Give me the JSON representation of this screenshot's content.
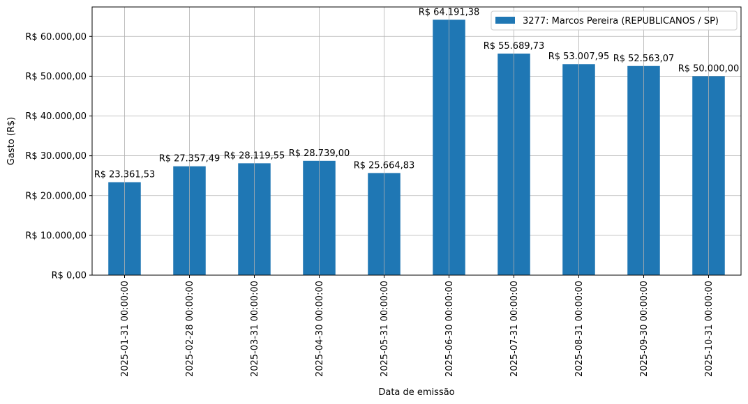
{
  "chart_data": {
    "type": "bar",
    "xlabel": "Data de emissão",
    "ylabel": "Gasto (R$)",
    "categories": [
      "2025-01-31 00:00:00",
      "2025-02-28 00:00:00",
      "2025-03-31 00:00:00",
      "2025-04-30 00:00:00",
      "2025-05-31 00:00:00",
      "2025-06-30 00:00:00",
      "2025-07-31 00:00:00",
      "2025-08-31 00:00:00",
      "2025-09-30 00:00:00",
      "2025-10-31 00:00:00"
    ],
    "series": [
      {
        "name": "3277: Marcos Pereira (REPUBLICANOS / SP)",
        "color": "#1f77b4",
        "values": [
          23361.53,
          27357.49,
          28119.55,
          28739.0,
          25664.83,
          64191.38,
          55689.73,
          53007.95,
          52563.07,
          50000.0
        ],
        "labels": [
          "R$ 23.361,53",
          "R$ 27.357,49",
          "R$ 28.119,55",
          "R$ 28.739,00",
          "R$ 25.664,83",
          "R$ 64.191,38",
          "R$ 55.689,73",
          "R$ 53.007,95",
          "R$ 52.563,07",
          "R$ 50.000,00"
        ]
      }
    ],
    "yticks": [
      0,
      10000,
      20000,
      30000,
      40000,
      50000,
      60000
    ],
    "ytick_labels": [
      "R$ 0,00",
      "R$ 10.000,00",
      "R$ 20.000,00",
      "R$ 30.000,00",
      "R$ 40.000,00",
      "R$ 50.000,00",
      "R$ 60.000,00"
    ],
    "ylim": [
      0,
      67400
    ],
    "grid": true,
    "legend_position": "top-right"
  }
}
